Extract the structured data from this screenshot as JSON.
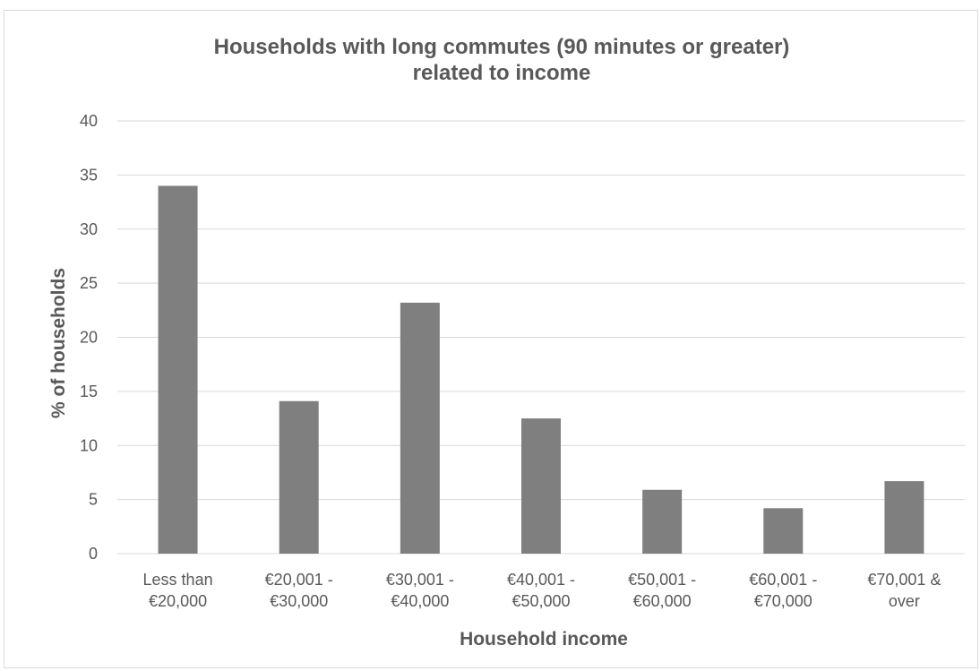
{
  "chart_data": {
    "type": "bar",
    "title": "Households with long commutes (90 minutes or greater) related to income",
    "title_lines": [
      "Households with long commutes (90 minutes or greater)",
      "related to income"
    ],
    "xlabel": "Household income",
    "ylabel": "% of households",
    "categories": [
      "Less than €20,000",
      "€20,001 - €30,000",
      "€30,001 - €40,000",
      "€40,001 - €50,000",
      "€50,001 - €60,000",
      "€60,001 - €70,000",
      "€70,001 & over"
    ],
    "category_lines": [
      [
        "Less than",
        "€20,000"
      ],
      [
        "€20,001 -",
        "€30,000"
      ],
      [
        "€30,001 -",
        "€40,000"
      ],
      [
        "€40,001 -",
        "€50,000"
      ],
      [
        "€50,001 -",
        "€60,000"
      ],
      [
        "€60,001 -",
        "€70,000"
      ],
      [
        "€70,001 &",
        "over"
      ]
    ],
    "values": [
      34.0,
      14.1,
      23.2,
      12.5,
      5.9,
      4.2,
      6.7
    ],
    "ylim": [
      0,
      40
    ],
    "yticks": [
      0,
      5,
      10,
      15,
      20,
      25,
      30,
      35,
      40
    ],
    "grid": true,
    "legend": "none",
    "bar_color": "#7f7f7f",
    "grid_color": "#d9d9d9",
    "text_color": "#595959"
  }
}
